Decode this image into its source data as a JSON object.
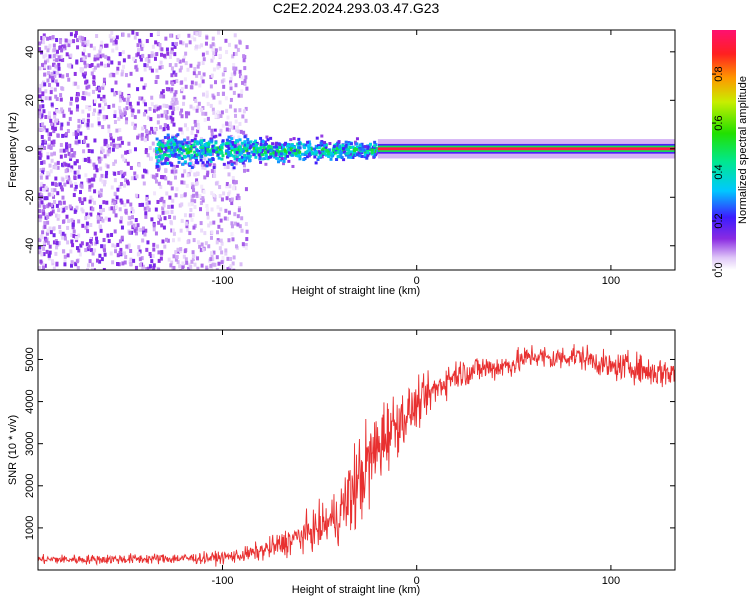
{
  "chart_data": [
    {
      "type": "heatmap",
      "title": "C2E2.2024.293.03.47.G23",
      "xlabel": "Height of straight line (km)",
      "ylabel": "Frequency (Hz)",
      "xlim": [
        -195,
        133
      ],
      "ylim": [
        -50,
        49
      ],
      "xticks": [
        -100,
        0,
        100
      ],
      "yticks": [
        -40,
        -20,
        0,
        20,
        40
      ],
      "colorbar": {
        "label": "Normalized spectral amplitude",
        "range": [
          0,
          0.98
        ],
        "ticks": [
          0.0,
          0.2,
          0.4,
          0.6,
          0.8
        ],
        "tick_labels": [
          "0.0",
          "0.2",
          "0.4",
          "0.6",
          "0.8"
        ]
      },
      "regions": [
        {
          "name": "diffuse noise",
          "x_range": [
            -195,
            -88
          ],
          "freq_range": [
            -50,
            49
          ],
          "amplitude": 0.15
        },
        {
          "name": "signal onset",
          "x_range": [
            -135,
            -20
          ],
          "freq_center": 0,
          "freq_halfwidth": 5,
          "amplitude": 0.4
        },
        {
          "name": "stable carrier",
          "x_range": [
            -20,
            133
          ],
          "freq_center": 0,
          "freq_halfwidth": 1,
          "amplitude": 0.95
        }
      ]
    },
    {
      "type": "line",
      "xlabel": "Height of straight line (km)",
      "ylabel": "SNR (10 * v/v)",
      "xlim": [
        -195,
        133
      ],
      "ylim": [
        0,
        5700
      ],
      "xticks": [
        -100,
        0,
        100
      ],
      "yticks": [
        1000,
        2000,
        3000,
        4000,
        5000
      ],
      "color": "#e83030",
      "series": [
        {
          "name": "SNR",
          "x": [
            -195,
            -170,
            -150,
            -130,
            -110,
            -100,
            -90,
            -80,
            -70,
            -60,
            -50,
            -40,
            -35,
            -30,
            -25,
            -20,
            -15,
            -10,
            -5,
            0,
            5,
            10,
            15,
            20,
            25,
            30,
            35,
            40,
            50,
            60,
            70,
            80,
            90,
            100,
            110,
            120,
            133
          ],
          "mean": [
            250,
            250,
            260,
            270,
            280,
            300,
            350,
            450,
            600,
            800,
            1000,
            1300,
            1700,
            2100,
            2500,
            2900,
            3300,
            3500,
            3700,
            3900,
            4100,
            4300,
            4500,
            4650,
            4700,
            4750,
            4800,
            4800,
            4900,
            5100,
            5000,
            5100,
            5000,
            4800,
            4850,
            4700,
            4700
          ],
          "noise": [
            100,
            100,
            110,
            110,
            120,
            130,
            150,
            200,
            280,
            350,
            420,
            600,
            900,
            1000,
            1000,
            900,
            800,
            650,
            550,
            480,
            420,
            380,
            340,
            320,
            300,
            300,
            300,
            280,
            270,
            260,
            260,
            260,
            260,
            280,
            300,
            320,
            350
          ]
        }
      ]
    }
  ]
}
